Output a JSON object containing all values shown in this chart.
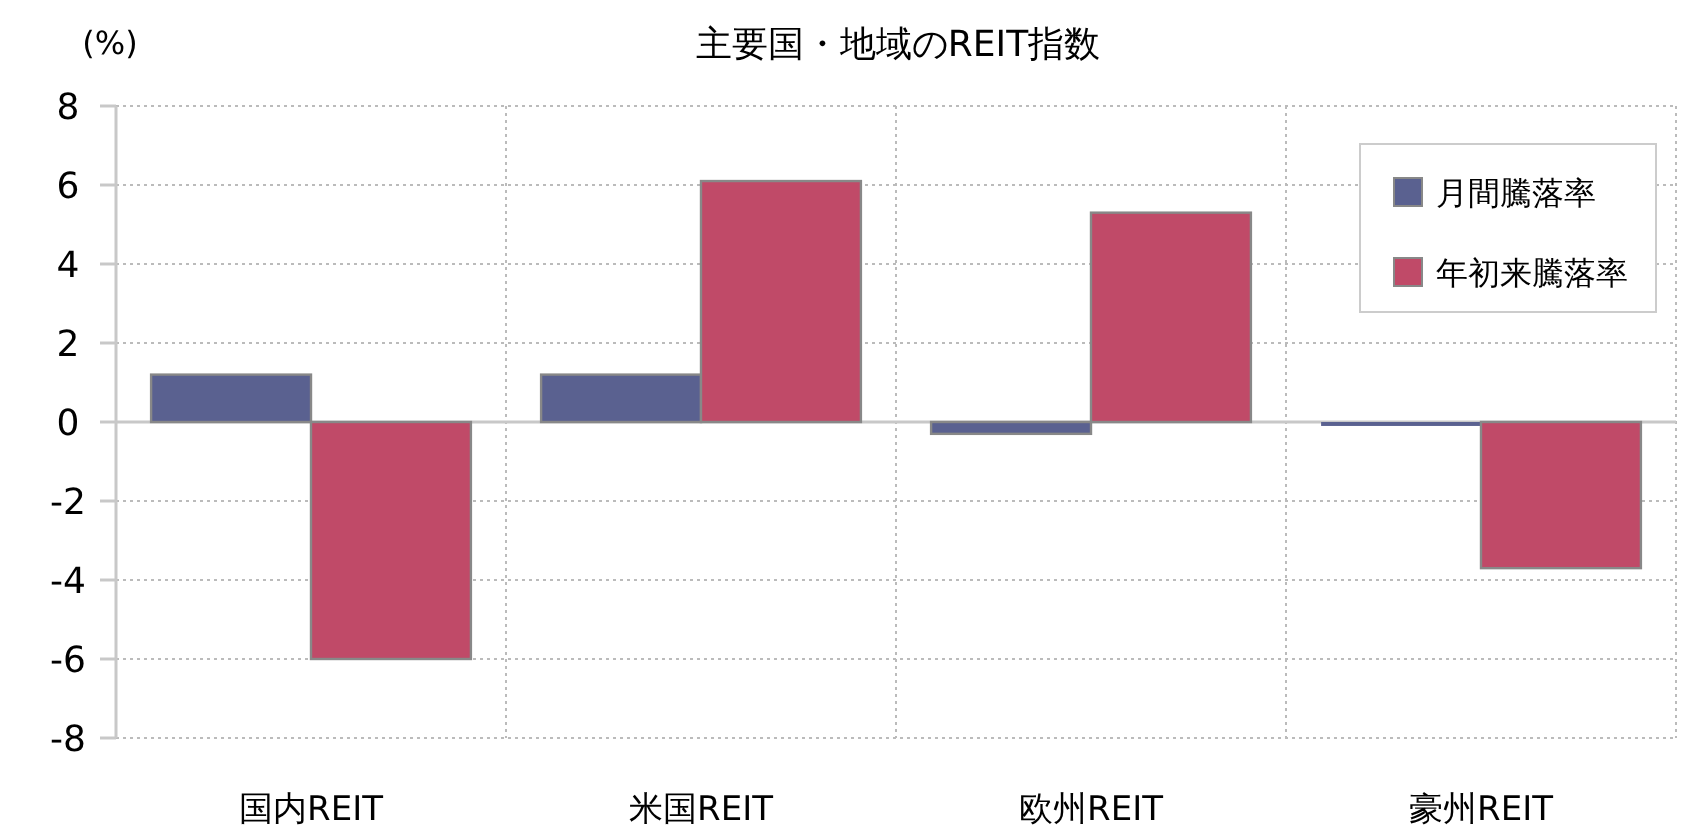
{
  "chart_data": {
    "type": "bar",
    "title": "主要国・地域のREIT指数",
    "ylabel": "(%)",
    "categories": [
      "国内REIT",
      "米国REIT",
      "欧州REIT",
      "豪州REIT"
    ],
    "series": [
      {
        "name": "月間騰落率",
        "color": "#5a6190",
        "values": [
          1.2,
          1.2,
          -0.3,
          -0.1
        ]
      },
      {
        "name": "年初来騰落率",
        "color": "#c04a68",
        "values": [
          -6.0,
          6.1,
          5.3,
          -3.7
        ]
      }
    ],
    "ylim": [
      -8,
      8
    ],
    "yticks": [
      -8,
      -6,
      -4,
      -2,
      0,
      2,
      4,
      6,
      8
    ],
    "grid": true,
    "legend": "top right"
  }
}
